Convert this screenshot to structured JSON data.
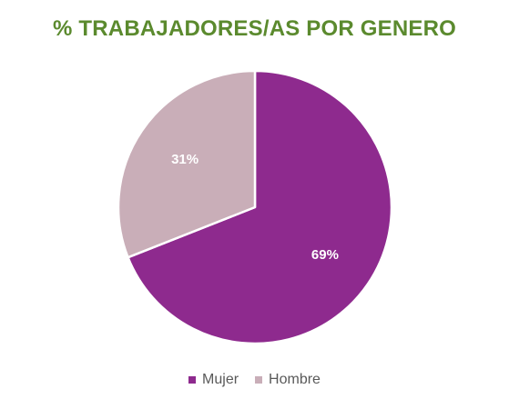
{
  "chart_data": {
    "type": "pie",
    "title": "% TRABAJADORES/AS POR GENERO",
    "categories": [
      "Mujer",
      "Hombre"
    ],
    "values": [
      69,
      31
    ],
    "labels": [
      "69%",
      "31%"
    ],
    "colors": [
      "#8E2A8E",
      "#C9AEB8"
    ],
    "legend_position": "bottom",
    "start_angle_deg": 0,
    "direction": "clockwise"
  },
  "theme": {
    "title_color": "#5B8A2E",
    "legend_text_color": "#595959"
  }
}
